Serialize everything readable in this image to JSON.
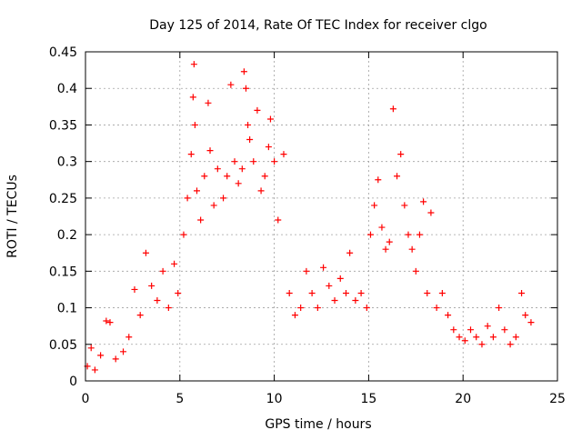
{
  "chart_data": {
    "type": "scatter",
    "title": "Day 125 of 2014, Rate Of TEC Index for receiver clgo",
    "xlabel": "GPS time / hours",
    "ylabel": "ROTI / TECUs",
    "xlim": [
      0,
      25
    ],
    "ylim": [
      0,
      0.45
    ],
    "xticks": [
      0,
      5,
      10,
      15,
      20,
      25
    ],
    "yticks": [
      0,
      0.05,
      0.1,
      0.15,
      0.2,
      0.25,
      0.3,
      0.35,
      0.4,
      0.45
    ],
    "xtick_labels": [
      "0",
      "5",
      "10",
      "15",
      "20",
      "25"
    ],
    "ytick_labels": [
      "0",
      "0.05",
      "0.1",
      "0.15",
      "0.2",
      "0.25",
      "0.3",
      "0.35",
      "0.4",
      "0.45"
    ],
    "grid": true,
    "marker": "+",
    "color": "#ff0000",
    "series": [
      {
        "points": [
          [
            0.1,
            0.02
          ],
          [
            0.3,
            0.045
          ],
          [
            0.5,
            0.015
          ],
          [
            0.8,
            0.035
          ],
          [
            1.1,
            0.082
          ],
          [
            1.3,
            0.08
          ],
          [
            1.6,
            0.03
          ],
          [
            2.0,
            0.04
          ],
          [
            2.3,
            0.06
          ],
          [
            2.6,
            0.125
          ],
          [
            2.9,
            0.09
          ],
          [
            3.2,
            0.175
          ],
          [
            3.5,
            0.13
          ],
          [
            3.8,
            0.11
          ],
          [
            4.1,
            0.15
          ],
          [
            4.4,
            0.1
          ],
          [
            4.7,
            0.16
          ],
          [
            4.9,
            0.12
          ],
          [
            5.2,
            0.2
          ],
          [
            5.4,
            0.25
          ],
          [
            5.6,
            0.31
          ],
          [
            5.7,
            0.388
          ],
          [
            5.75,
            0.433
          ],
          [
            5.8,
            0.35
          ],
          [
            5.9,
            0.26
          ],
          [
            6.1,
            0.22
          ],
          [
            6.3,
            0.28
          ],
          [
            6.5,
            0.38
          ],
          [
            6.6,
            0.315
          ],
          [
            6.8,
            0.24
          ],
          [
            7.0,
            0.29
          ],
          [
            7.3,
            0.25
          ],
          [
            7.5,
            0.28
          ],
          [
            7.7,
            0.405
          ],
          [
            7.9,
            0.3
          ],
          [
            8.1,
            0.27
          ],
          [
            8.3,
            0.29
          ],
          [
            8.4,
            0.423
          ],
          [
            8.5,
            0.4
          ],
          [
            8.6,
            0.35
          ],
          [
            8.7,
            0.33
          ],
          [
            8.9,
            0.3
          ],
          [
            9.1,
            0.37
          ],
          [
            9.3,
            0.26
          ],
          [
            9.5,
            0.28
          ],
          [
            9.7,
            0.32
          ],
          [
            9.8,
            0.358
          ],
          [
            10.0,
            0.3
          ],
          [
            10.2,
            0.22
          ],
          [
            10.5,
            0.31
          ],
          [
            10.8,
            0.12
          ],
          [
            11.1,
            0.09
          ],
          [
            11.4,
            0.1
          ],
          [
            11.7,
            0.15
          ],
          [
            12.0,
            0.12
          ],
          [
            12.3,
            0.1
          ],
          [
            12.6,
            0.155
          ],
          [
            12.9,
            0.13
          ],
          [
            13.2,
            0.11
          ],
          [
            13.5,
            0.14
          ],
          [
            13.8,
            0.12
          ],
          [
            14.0,
            0.175
          ],
          [
            14.3,
            0.11
          ],
          [
            14.6,
            0.12
          ],
          [
            14.9,
            0.1
          ],
          [
            15.1,
            0.2
          ],
          [
            15.3,
            0.24
          ],
          [
            15.5,
            0.275
          ],
          [
            15.7,
            0.21
          ],
          [
            15.9,
            0.18
          ],
          [
            16.1,
            0.19
          ],
          [
            16.3,
            0.372
          ],
          [
            16.5,
            0.28
          ],
          [
            16.7,
            0.31
          ],
          [
            16.9,
            0.24
          ],
          [
            17.1,
            0.2
          ],
          [
            17.3,
            0.18
          ],
          [
            17.5,
            0.15
          ],
          [
            17.7,
            0.2
          ],
          [
            17.9,
            0.245
          ],
          [
            18.1,
            0.12
          ],
          [
            18.3,
            0.23
          ],
          [
            18.6,
            0.1
          ],
          [
            18.9,
            0.12
          ],
          [
            19.2,
            0.09
          ],
          [
            19.5,
            0.07
          ],
          [
            19.8,
            0.06
          ],
          [
            20.1,
            0.055
          ],
          [
            20.4,
            0.07
          ],
          [
            20.7,
            0.06
          ],
          [
            21.0,
            0.05
          ],
          [
            21.3,
            0.075
          ],
          [
            21.6,
            0.06
          ],
          [
            21.9,
            0.1
          ],
          [
            22.2,
            0.07
          ],
          [
            22.5,
            0.05
          ],
          [
            22.8,
            0.06
          ],
          [
            23.1,
            0.12
          ],
          [
            23.3,
            0.09
          ],
          [
            23.6,
            0.08
          ]
        ]
      }
    ]
  }
}
